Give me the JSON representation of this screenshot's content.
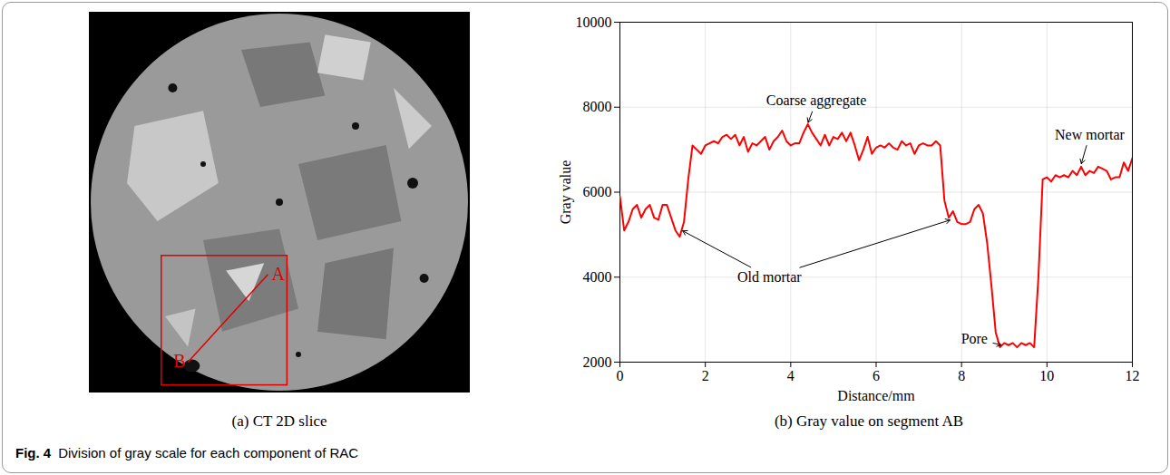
{
  "figure": {
    "caption_label": "Fig. 4",
    "caption": "Division of gray scale for each component of RAC",
    "panels": [
      {
        "caption": "(a) CT 2D slice",
        "segment_labels": [
          "A",
          "B"
        ]
      },
      {
        "caption": "(b) Gray value on segment AB"
      }
    ]
  },
  "chart_data": {
    "type": "line",
    "x_label": "Distance/mm",
    "y_label": "Gray value",
    "xlim": [
      0,
      12
    ],
    "xticks": [
      0,
      2,
      4,
      6,
      8,
      10,
      12
    ],
    "ylim": [
      2000,
      10000
    ],
    "yticks": [
      2000,
      4000,
      6000,
      8000,
      10000
    ],
    "grid": true,
    "color": "#ff0000",
    "x": [
      0.0,
      0.1,
      0.2,
      0.3,
      0.4,
      0.5,
      0.6,
      0.7,
      0.8,
      0.9,
      1.0,
      1.1,
      1.2,
      1.3,
      1.4,
      1.5,
      1.6,
      1.7,
      1.8,
      1.9,
      2.0,
      2.1,
      2.2,
      2.3,
      2.4,
      2.5,
      2.6,
      2.7,
      2.8,
      2.9,
      3.0,
      3.1,
      3.2,
      3.3,
      3.4,
      3.5,
      3.6,
      3.7,
      3.8,
      3.9,
      4.0,
      4.1,
      4.2,
      4.3,
      4.4,
      4.5,
      4.6,
      4.7,
      4.8,
      4.9,
      5.0,
      5.1,
      5.2,
      5.3,
      5.4,
      5.5,
      5.6,
      5.7,
      5.8,
      5.9,
      6.0,
      6.1,
      6.2,
      6.3,
      6.4,
      6.5,
      6.6,
      6.7,
      6.8,
      6.9,
      7.0,
      7.1,
      7.2,
      7.3,
      7.4,
      7.5,
      7.6,
      7.7,
      7.8,
      7.9,
      8.0,
      8.1,
      8.2,
      8.3,
      8.4,
      8.5,
      8.6,
      8.7,
      8.8,
      8.9,
      9.0,
      9.1,
      9.2,
      9.3,
      9.4,
      9.5,
      9.6,
      9.7,
      9.8,
      9.9,
      10.0,
      10.1,
      10.2,
      10.3,
      10.4,
      10.5,
      10.6,
      10.7,
      10.8,
      10.9,
      11.0,
      11.1,
      11.2,
      11.3,
      11.4,
      11.5,
      11.6,
      11.7,
      11.8,
      11.9,
      12.0
    ],
    "values": [
      5900,
      5100,
      5300,
      5600,
      5700,
      5400,
      5600,
      5700,
      5400,
      5350,
      5700,
      5700,
      5400,
      5100,
      4950,
      5300,
      6300,
      7100,
      7000,
      6900,
      7100,
      7150,
      7200,
      7150,
      7300,
      7350,
      7250,
      7350,
      7100,
      7300,
      6950,
      7150,
      7100,
      7200,
      7300,
      7000,
      7200,
      7300,
      7450,
      7200,
      7100,
      7150,
      7150,
      7400,
      7600,
      7400,
      7250,
      7100,
      7350,
      7100,
      7300,
      7250,
      7400,
      7200,
      7400,
      7100,
      6750,
      7000,
      7300,
      6900,
      7050,
      7100,
      7050,
      7150,
      7050,
      7000,
      7200,
      7100,
      7150,
      6900,
      7100,
      7150,
      7100,
      7100,
      7200,
      7100,
      5800,
      5400,
      5550,
      5300,
      5250,
      5250,
      5300,
      5600,
      5700,
      5500,
      4800,
      3800,
      2700,
      2350,
      2450,
      2400,
      2450,
      2350,
      2450,
      2400,
      2450,
      2350,
      4000,
      6300,
      6350,
      6250,
      6400,
      6350,
      6400,
      6350,
      6500,
      6400,
      6600,
      6400,
      6500,
      6450,
      6600,
      6550,
      6500,
      6300,
      6350,
      6350,
      6700,
      6500,
      6800
    ],
    "annotations": [
      {
        "text": "Coarse aggregate",
        "x": 4.6,
        "y": 8150,
        "targets": [
          [
            4.4,
            7620
          ]
        ]
      },
      {
        "text": "Old mortar",
        "x": 3.5,
        "y": 4000,
        "targets": [
          [
            1.45,
            5100
          ],
          [
            7.75,
            5350
          ]
        ]
      },
      {
        "text": "New mortar",
        "x": 11.0,
        "y": 7350,
        "targets": [
          [
            10.8,
            6650
          ]
        ]
      },
      {
        "text": "Pore",
        "x": 8.3,
        "y": 2550,
        "targets": [
          [
            8.95,
            2400
          ]
        ]
      }
    ]
  }
}
